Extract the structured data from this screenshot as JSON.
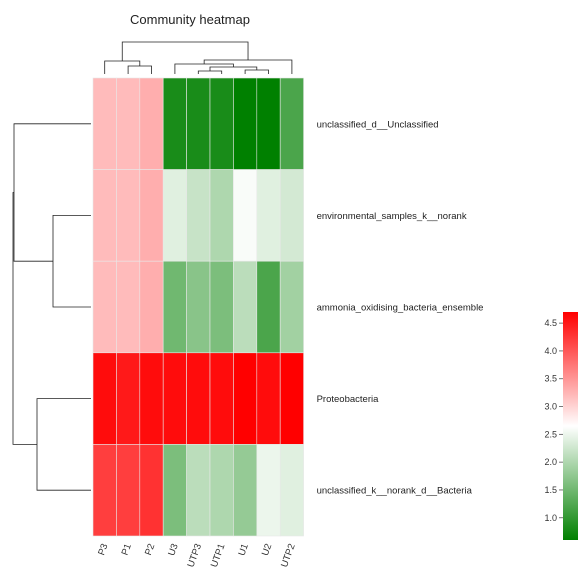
{
  "chart_data": {
    "type": "heatmap",
    "title": "Community heatmap",
    "columns": [
      "P3",
      "P1",
      "P2",
      "U3",
      "UTP3",
      "UTP1",
      "U1",
      "U2",
      "UTP2"
    ],
    "rows": [
      "unclassified_d__Unclassified",
      "environmental_samples_k__norank",
      "ammonia_oxidising_bacteria_ensemble",
      "Proteobacteria",
      "unclassified_k__norank_d__Bacteria"
    ],
    "values": [
      [
        3.2,
        3.2,
        3.3,
        0.8,
        0.8,
        0.8,
        0.6,
        0.6,
        1.2
      ],
      [
        3.2,
        3.2,
        3.3,
        2.4,
        2.2,
        2.0,
        2.6,
        2.4,
        2.3
      ],
      [
        3.2,
        3.2,
        3.3,
        1.5,
        1.7,
        1.6,
        2.1,
        1.2,
        1.9
      ],
      [
        4.6,
        4.5,
        4.6,
        4.6,
        4.6,
        4.6,
        4.7,
        4.6,
        4.7
      ],
      [
        4.2,
        4.2,
        4.3,
        1.6,
        2.1,
        2.0,
        1.8,
        2.5,
        2.4
      ]
    ],
    "colorbar": {
      "ticks": [
        1.0,
        1.5,
        2.0,
        2.5,
        3.0,
        3.5,
        4.0,
        4.5
      ],
      "range": [
        0.6,
        4.7
      ],
      "colors": {
        "low": "#008000",
        "mid": "#ffffff",
        "high": "#ff0000"
      },
      "midpoint": 2.65
    },
    "legend_position": "right"
  }
}
